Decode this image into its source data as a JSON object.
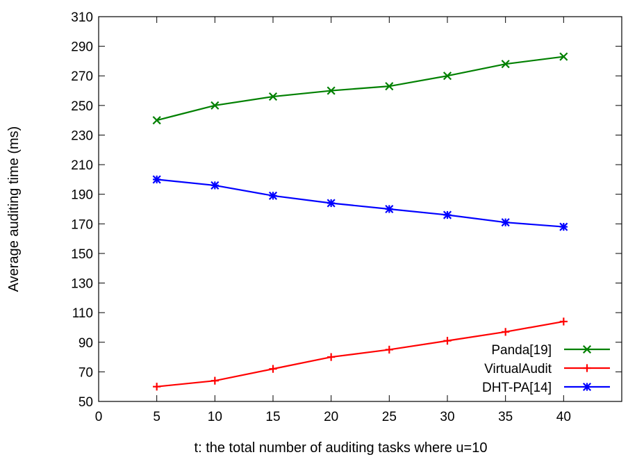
{
  "chart_data": {
    "type": "line",
    "xlabel": "t: the total number of auditing tasks where u=10",
    "ylabel": "Average auditing time (ms)",
    "xlim": [
      0,
      45
    ],
    "ylim": [
      50,
      310
    ],
    "xticks": [
      0,
      5,
      10,
      15,
      20,
      25,
      30,
      35,
      40
    ],
    "yticks": [
      50,
      70,
      90,
      110,
      130,
      150,
      170,
      190,
      210,
      230,
      250,
      270,
      290,
      310
    ],
    "grid": false,
    "legend_position": "bottom-right",
    "x": [
      5,
      10,
      15,
      20,
      25,
      30,
      35,
      40
    ],
    "series": [
      {
        "name": "Panda[19]",
        "values": [
          240,
          250,
          256,
          260,
          263,
          270,
          278,
          283
        ],
        "color": "#008000",
        "marker": "x"
      },
      {
        "name": "VirtualAudit",
        "values": [
          60,
          64,
          72,
          80,
          85,
          91,
          97,
          104
        ],
        "color": "#ff0000",
        "marker": "+"
      },
      {
        "name": "DHT-PA[14]",
        "values": [
          200,
          196,
          189,
          184,
          180,
          176,
          171,
          168
        ],
        "color": "#0000ff",
        "marker": "star"
      }
    ]
  }
}
